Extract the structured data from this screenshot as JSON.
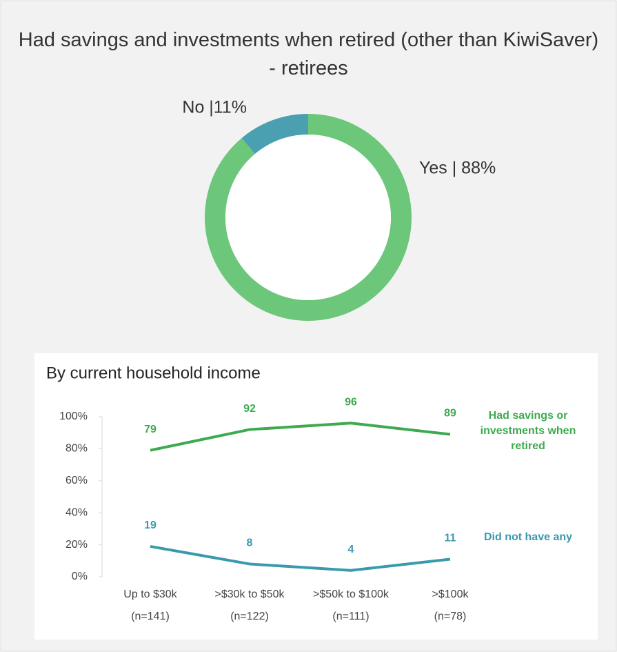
{
  "chart_data": [
    {
      "type": "donut",
      "title": "Had savings and investments when retired (other than KiwiSaver) - retirees",
      "values": [
        88,
        11
      ],
      "value_labels": [
        "Yes | 88%",
        "No |11%"
      ],
      "colors": [
        "#6cc77a",
        "#4aa0b0"
      ]
    },
    {
      "type": "line",
      "title": "By current household income",
      "categories": [
        "Up to $30k",
        ">$30k to $50k",
        ">$50k to $100k",
        ">$100k"
      ],
      "sample_sizes": [
        "(n=141)",
        "(n=122)",
        "(n=111)",
        "(n=78)"
      ],
      "series": [
        {
          "name": "Had savings or investments when retired",
          "color": "#3daa4f",
          "values": [
            79,
            92,
            96,
            89
          ]
        },
        {
          "name": "Did not have any",
          "color": "#3a9aab",
          "values": [
            19,
            8,
            4,
            11
          ]
        }
      ],
      "ylim": [
        0,
        100
      ],
      "yticks": [
        {
          "value": 0,
          "label": "0%"
        },
        {
          "value": 20,
          "label": "20%"
        },
        {
          "value": 40,
          "label": "40%"
        },
        {
          "value": 60,
          "label": "60%"
        },
        {
          "value": 80,
          "label": "80%"
        },
        {
          "value": 100,
          "label": "100%"
        }
      ]
    }
  ]
}
